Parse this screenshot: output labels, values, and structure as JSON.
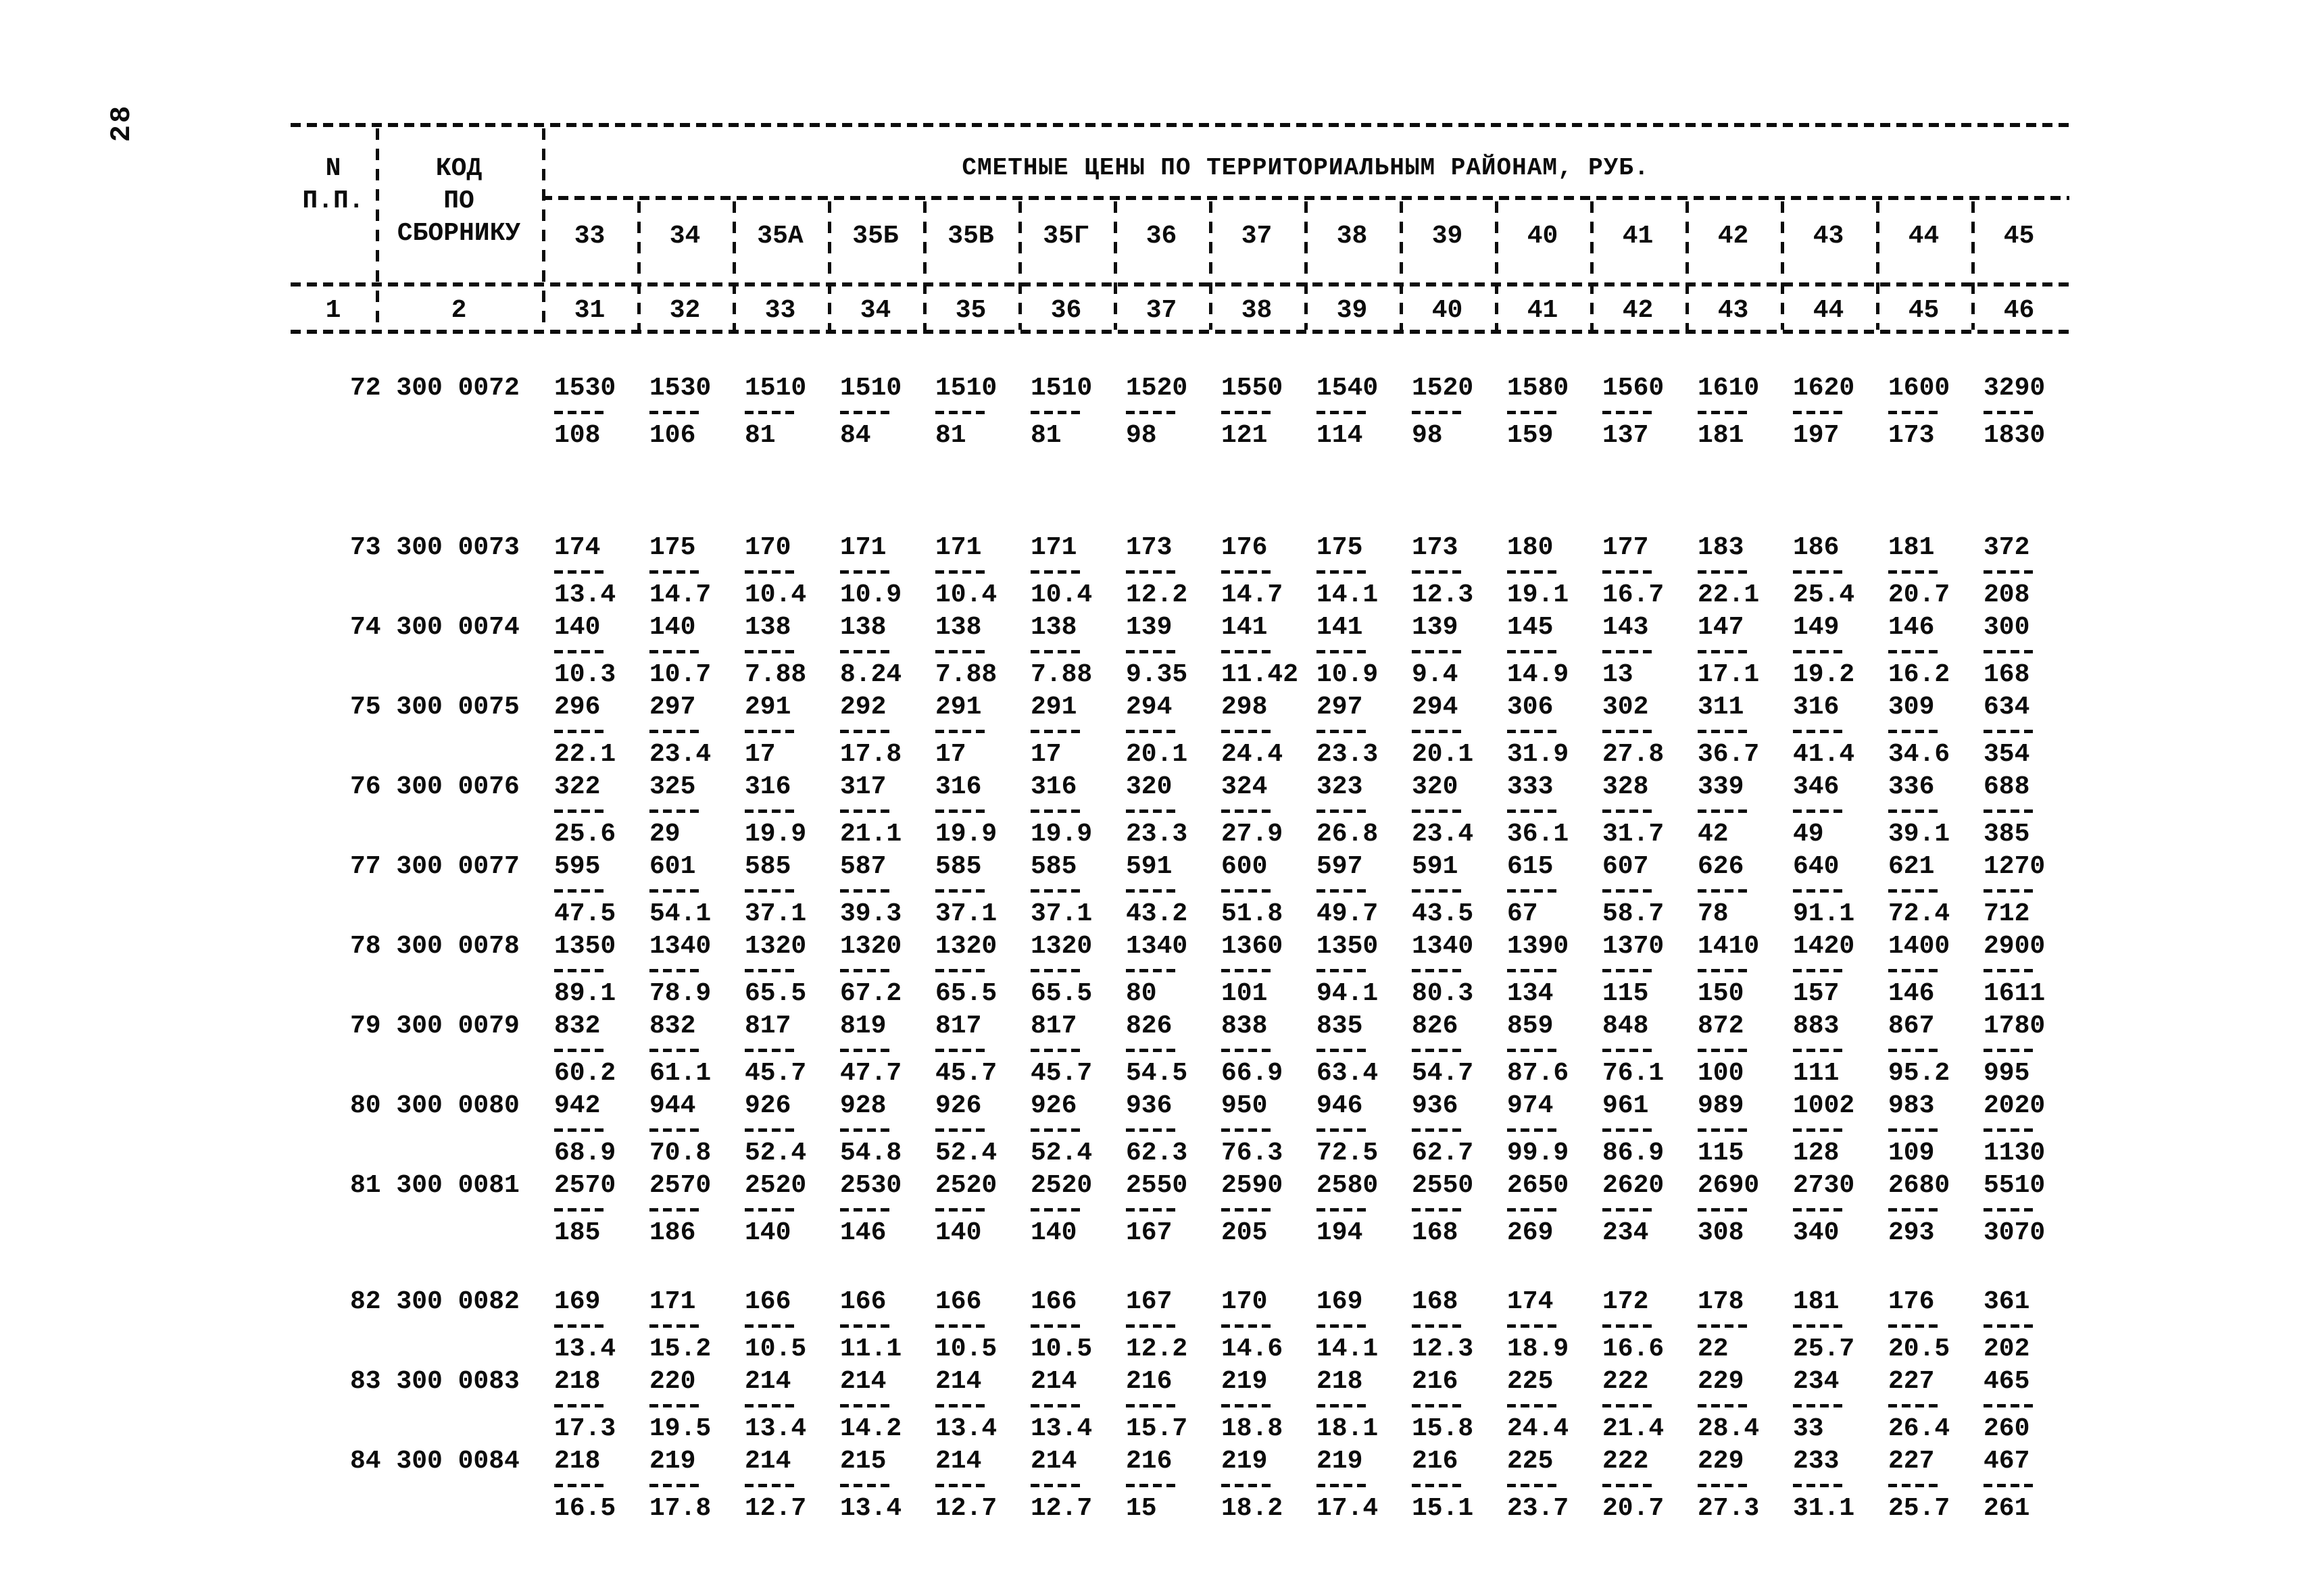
{
  "page": {
    "number": "28"
  },
  "header": {
    "col1_line1": "N",
    "col1_line2": "П.П.",
    "col2_line1": "КОД",
    "col2_line2": "ПО",
    "col2_line3": "СБОРНИКУ",
    "title": "СМЕТНЫЕ ЦЕНЫ ПО ТЕРРИТОРИАЛЬНЫМ РАЙОНАМ, РУБ.",
    "districts": [
      "33",
      "34",
      "35А",
      "35Б",
      "35В",
      "35Г",
      "36",
      "37",
      "38",
      "39",
      "40",
      "41",
      "42",
      "43",
      "44",
      "45"
    ],
    "col_numbers": [
      "1",
      "2",
      "31",
      "32",
      "33",
      "34",
      "35",
      "36",
      "37",
      "38",
      "39",
      "40",
      "41",
      "42",
      "43",
      "44",
      "45",
      "46"
    ]
  },
  "rows": [
    {
      "num": "72",
      "code": "300 0072",
      "top": [
        "1530",
        "1530",
        "1510",
        "1510",
        "1510",
        "1510",
        "1520",
        "1550",
        "1540",
        "1520",
        "1580",
        "1560",
        "1610",
        "1620",
        "1600",
        "3290"
      ],
      "bottom": [
        "108",
        "106",
        "81",
        "84",
        "81",
        "81",
        "98",
        "121",
        "114",
        "98",
        "159",
        "137",
        "181",
        "197",
        "173",
        "1830"
      ]
    },
    {
      "num": "73",
      "code": "300 0073",
      "top": [
        "174",
        "175",
        "170",
        "171",
        "171",
        "171",
        "173",
        "176",
        "175",
        "173",
        "180",
        "177",
        "183",
        "186",
        "181",
        "372"
      ],
      "bottom": [
        "13.4",
        "14.7",
        "10.4",
        "10.9",
        "10.4",
        "10.4",
        "12.2",
        "14.7",
        "14.1",
        "12.3",
        "19.1",
        "16.7",
        "22.1",
        "25.4",
        "20.7",
        "208"
      ]
    },
    {
      "num": "74",
      "code": "300 0074",
      "top": [
        "140",
        "140",
        "138",
        "138",
        "138",
        "138",
        "139",
        "141",
        "141",
        "139",
        "145",
        "143",
        "147",
        "149",
        "146",
        "300"
      ],
      "bottom": [
        "10.3",
        "10.7",
        "7.88",
        "8.24",
        "7.88",
        "7.88",
        "9.35",
        "11.42",
        "10.9",
        "9.4",
        "14.9",
        "13",
        "17.1",
        "19.2",
        "16.2",
        "168"
      ]
    },
    {
      "num": "75",
      "code": "300 0075",
      "top": [
        "296",
        "297",
        "291",
        "292",
        "291",
        "291",
        "294",
        "298",
        "297",
        "294",
        "306",
        "302",
        "311",
        "316",
        "309",
        "634"
      ],
      "bottom": [
        "22.1",
        "23.4",
        "17",
        "17.8",
        "17",
        "17",
        "20.1",
        "24.4",
        "23.3",
        "20.1",
        "31.9",
        "27.8",
        "36.7",
        "41.4",
        "34.6",
        "354"
      ]
    },
    {
      "num": "76",
      "code": "300 0076",
      "top": [
        "322",
        "325",
        "316",
        "317",
        "316",
        "316",
        "320",
        "324",
        "323",
        "320",
        "333",
        "328",
        "339",
        "346",
        "336",
        "688"
      ],
      "bottom": [
        "25.6",
        "29",
        "19.9",
        "21.1",
        "19.9",
        "19.9",
        "23.3",
        "27.9",
        "26.8",
        "23.4",
        "36.1",
        "31.7",
        "42",
        "49",
        "39.1",
        "385"
      ]
    },
    {
      "num": "77",
      "code": "300 0077",
      "top": [
        "595",
        "601",
        "585",
        "587",
        "585",
        "585",
        "591",
        "600",
        "597",
        "591",
        "615",
        "607",
        "626",
        "640",
        "621",
        "1270"
      ],
      "bottom": [
        "47.5",
        "54.1",
        "37.1",
        "39.3",
        "37.1",
        "37.1",
        "43.2",
        "51.8",
        "49.7",
        "43.5",
        "67",
        "58.7",
        "78",
        "91.1",
        "72.4",
        "712"
      ]
    },
    {
      "num": "78",
      "code": "300 0078",
      "top": [
        "1350",
        "1340",
        "1320",
        "1320",
        "1320",
        "1320",
        "1340",
        "1360",
        "1350",
        "1340",
        "1390",
        "1370",
        "1410",
        "1420",
        "1400",
        "2900"
      ],
      "bottom": [
        "89.1",
        "78.9",
        "65.5",
        "67.2",
        "65.5",
        "65.5",
        "80",
        "101",
        "94.1",
        "80.3",
        "134",
        "115",
        "150",
        "157",
        "146",
        "1611"
      ]
    },
    {
      "num": "79",
      "code": "300 0079",
      "top": [
        "832",
        "832",
        "817",
        "819",
        "817",
        "817",
        "826",
        "838",
        "835",
        "826",
        "859",
        "848",
        "872",
        "883",
        "867",
        "1780"
      ],
      "bottom": [
        "60.2",
        "61.1",
        "45.7",
        "47.7",
        "45.7",
        "45.7",
        "54.5",
        "66.9",
        "63.4",
        "54.7",
        "87.6",
        "76.1",
        "100",
        "111",
        "95.2",
        "995"
      ]
    },
    {
      "num": "80",
      "code": "300 0080",
      "top": [
        "942",
        "944",
        "926",
        "928",
        "926",
        "926",
        "936",
        "950",
        "946",
        "936",
        "974",
        "961",
        "989",
        "1002",
        "983",
        "2020"
      ],
      "bottom": [
        "68.9",
        "70.8",
        "52.4",
        "54.8",
        "52.4",
        "52.4",
        "62.3",
        "76.3",
        "72.5",
        "62.7",
        "99.9",
        "86.9",
        "115",
        "128",
        "109",
        "1130"
      ]
    },
    {
      "num": "81",
      "code": "300 0081",
      "top": [
        "2570",
        "2570",
        "2520",
        "2530",
        "2520",
        "2520",
        "2550",
        "2590",
        "2580",
        "2550",
        "2650",
        "2620",
        "2690",
        "2730",
        "2680",
        "5510"
      ],
      "bottom": [
        "185",
        "186",
        "140",
        "146",
        "140",
        "140",
        "167",
        "205",
        "194",
        "168",
        "269",
        "234",
        "308",
        "340",
        "293",
        "3070"
      ]
    },
    {
      "num": "82",
      "code": "300 0082",
      "top": [
        "169",
        "171",
        "166",
        "166",
        "166",
        "166",
        "167",
        "170",
        "169",
        "168",
        "174",
        "172",
        "178",
        "181",
        "176",
        "361"
      ],
      "bottom": [
        "13.4",
        "15.2",
        "10.5",
        "11.1",
        "10.5",
        "10.5",
        "12.2",
        "14.6",
        "14.1",
        "12.3",
        "18.9",
        "16.6",
        "22",
        "25.7",
        "20.5",
        "202"
      ]
    },
    {
      "num": "83",
      "code": "300 0083",
      "top": [
        "218",
        "220",
        "214",
        "214",
        "214",
        "214",
        "216",
        "219",
        "218",
        "216",
        "225",
        "222",
        "229",
        "234",
        "227",
        "465"
      ],
      "bottom": [
        "17.3",
        "19.5",
        "13.4",
        "14.2",
        "13.4",
        "13.4",
        "15.7",
        "18.8",
        "18.1",
        "15.8",
        "24.4",
        "21.4",
        "28.4",
        "33",
        "26.4",
        "260"
      ]
    },
    {
      "num": "84",
      "code": "300 0084",
      "top": [
        "218",
        "219",
        "214",
        "215",
        "214",
        "214",
        "216",
        "219",
        "219",
        "216",
        "225",
        "222",
        "229",
        "233",
        "227",
        "467"
      ],
      "bottom": [
        "16.5",
        "17.8",
        "12.7",
        "13.4",
        "12.7",
        "12.7",
        "15",
        "18.2",
        "17.4",
        "15.1",
        "23.7",
        "20.7",
        "27.3",
        "31.1",
        "25.7",
        "261"
      ]
    }
  ]
}
